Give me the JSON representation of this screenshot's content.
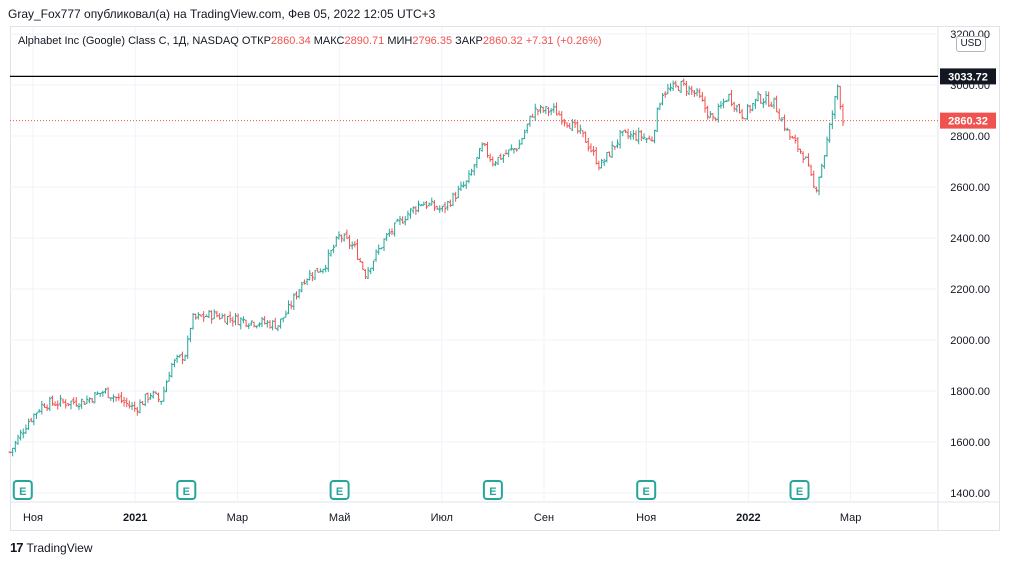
{
  "header": {
    "text": "Gray_Fox777 опубликовал(а) на TradingView.com, Фев 05, 2022 12:05 UTC+3"
  },
  "legend": {
    "symbol": "Alphabet Inc (Google) Class C, 1Д, NASDAQ",
    "open_label": "ОТКР",
    "open": "2860.34",
    "high_label": "МАКС",
    "high": "2890.71",
    "low_label": "МИН",
    "low": "2796.35",
    "close_label": "ЗАКР",
    "close": "2860.32",
    "change": "+7.31 (+0.26%)"
  },
  "currency": "USD",
  "footer": {
    "brand_mark": "17",
    "brand": "TradingView"
  },
  "colors": {
    "up": "#26a69a",
    "down": "#ef5350",
    "grid": "#f0f3fa",
    "axis": "#131722"
  },
  "chart_data": {
    "type": "candlestick",
    "title": "Alphabet Inc (Google) Class C, 1Д, NASDAQ",
    "ylim": [
      1400,
      3200
    ],
    "y_ticks": [
      "3200.00",
      "3000.00",
      "2800.00",
      "2600.00",
      "2400.00",
      "2200.00",
      "2000.00",
      "1800.00",
      "1600.00",
      "1400.00"
    ],
    "y_tick_values": [
      3200,
      3000,
      2800,
      2600,
      2400,
      2200,
      2000,
      1800,
      1600,
      1400
    ],
    "x_ticks": [
      {
        "label": "Ноя",
        "month": 0
      },
      {
        "label": "2021",
        "month": 2,
        "bold": true
      },
      {
        "label": "Мар",
        "month": 4
      },
      {
        "label": "Май",
        "month": 6
      },
      {
        "label": "Июл",
        "month": 8
      },
      {
        "label": "Сен",
        "month": 10
      },
      {
        "label": "Ноя",
        "month": 12
      },
      {
        "label": "2022",
        "month": 14,
        "bold": true
      },
      {
        "label": "Мар",
        "month": 16
      }
    ],
    "horizontal_line": {
      "value": 3033.72,
      "label": "3033.72"
    },
    "last_price": {
      "value": 2860.32,
      "label": "2860.32"
    },
    "earnings_markers": {
      "label": "E",
      "positions_month": [
        -0.2,
        3.0,
        6.0,
        9.0,
        12.0,
        15.0
      ]
    },
    "series_keypoints": [
      [
        -0.45,
        1560
      ],
      [
        -0.1,
        1680
      ],
      [
        0.2,
        1750
      ],
      [
        1.0,
        1760
      ],
      [
        1.4,
        1800
      ],
      [
        2.0,
        1730
      ],
      [
        2.3,
        1790
      ],
      [
        2.5,
        1760
      ],
      [
        2.7,
        1900
      ],
      [
        3.0,
        1950
      ],
      [
        3.1,
        2080
      ],
      [
        3.5,
        2100
      ],
      [
        4.0,
        2080
      ],
      [
        4.8,
        2060
      ],
      [
        5.0,
        2120
      ],
      [
        5.3,
        2240
      ],
      [
        5.7,
        2290
      ],
      [
        6.0,
        2410
      ],
      [
        6.3,
        2360
      ],
      [
        6.5,
        2260
      ],
      [
        6.9,
        2400
      ],
      [
        7.3,
        2490
      ],
      [
        7.6,
        2540
      ],
      [
        8.0,
        2510
      ],
      [
        8.5,
        2620
      ],
      [
        8.8,
        2760
      ],
      [
        9.0,
        2700
      ],
      [
        9.5,
        2760
      ],
      [
        9.8,
        2900
      ],
      [
        10.2,
        2900
      ],
      [
        10.5,
        2850
      ],
      [
        10.8,
        2790
      ],
      [
        11.1,
        2680
      ],
      [
        11.5,
        2800
      ],
      [
        11.9,
        2800
      ],
      [
        12.1,
        2780
      ],
      [
        12.3,
        2970
      ],
      [
        12.7,
        3000
      ],
      [
        13.0,
        2960
      ],
      [
        13.3,
        2860
      ],
      [
        13.6,
        2960
      ],
      [
        13.9,
        2880
      ],
      [
        14.2,
        2950
      ],
      [
        14.5,
        2930
      ],
      [
        14.8,
        2800
      ],
      [
        15.1,
        2720
      ],
      [
        15.3,
        2580
      ],
      [
        15.5,
        2740
      ],
      [
        15.75,
        3000
      ],
      [
        15.85,
        2860
      ]
    ]
  }
}
